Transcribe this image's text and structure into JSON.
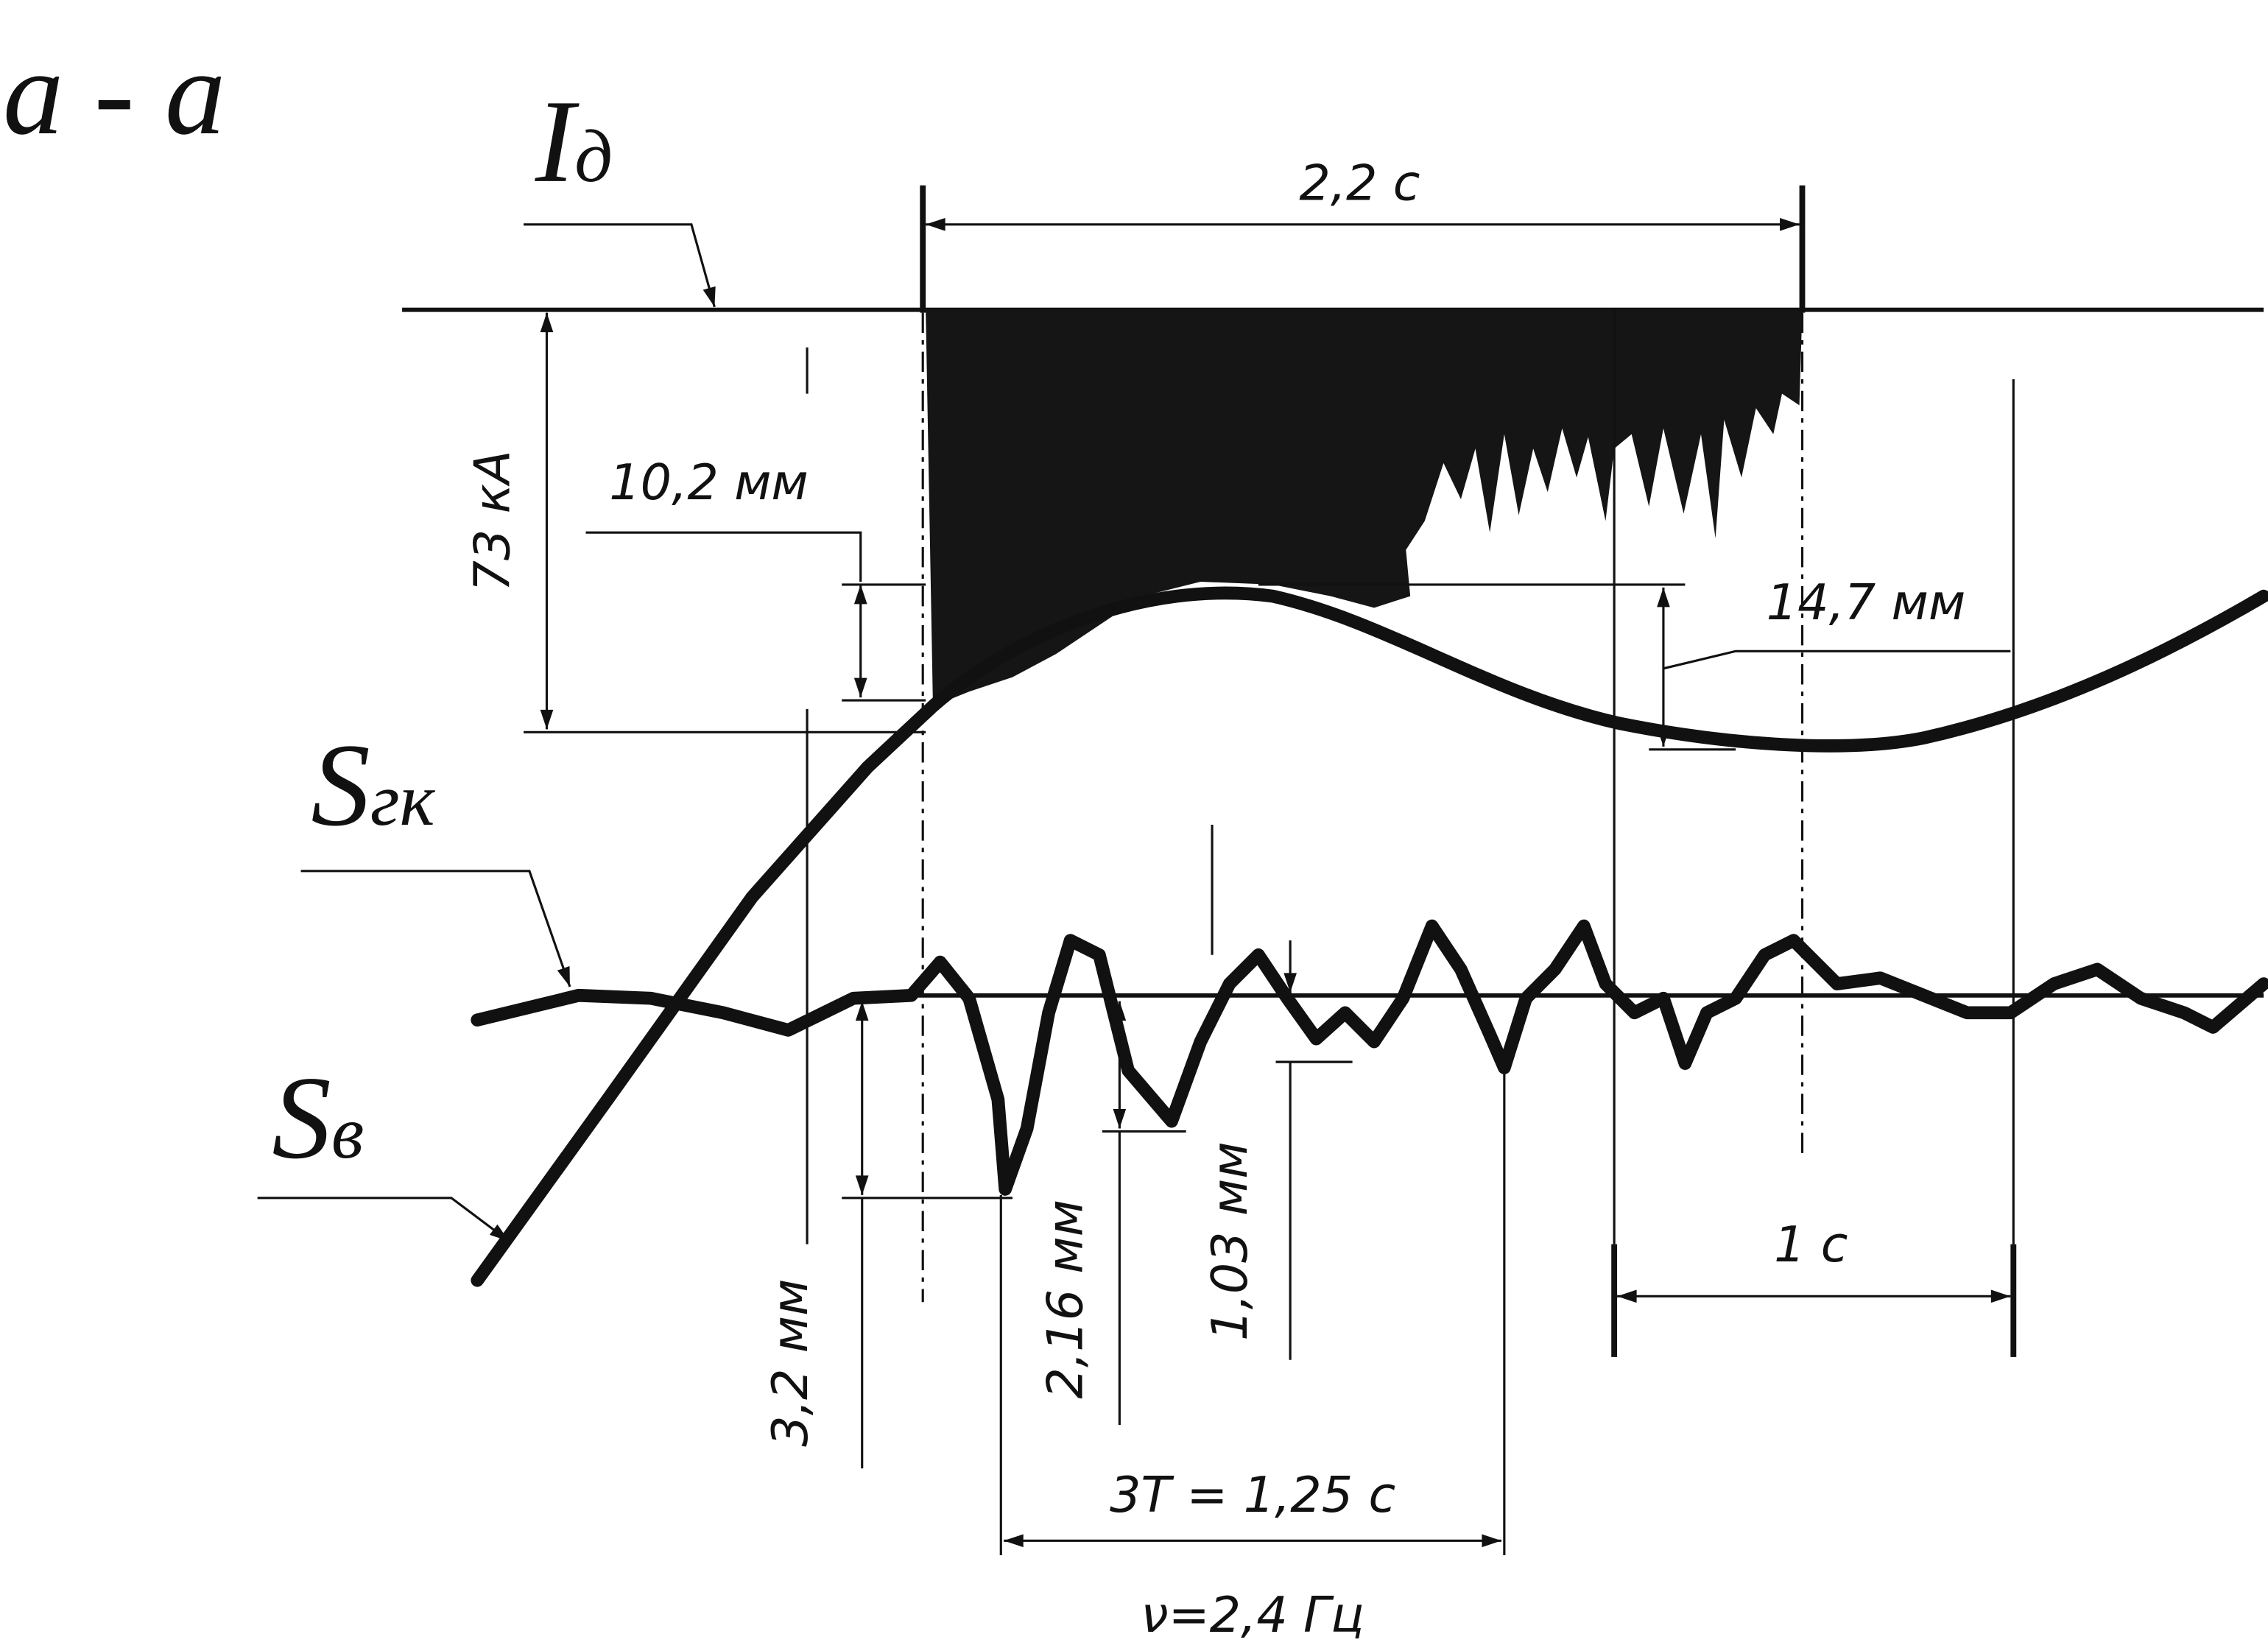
{
  "section_label": "a - a",
  "signals": {
    "current": {
      "symbol": "I",
      "subscript": "д"
    },
    "s_gk": {
      "symbol": "S",
      "subscript": "гк"
    },
    "s_v": {
      "symbol": "S",
      "subscript": "в"
    }
  },
  "dimensions": {
    "duration": "2,2 с",
    "current_amplitude": "73 кА",
    "s_gk_rise": "10,2 мм",
    "s_gk_drop": "14,7 мм",
    "time_scale": "1 с",
    "s_v_first": "3,2 мм",
    "s_v_second": "2,16 мм",
    "s_v_third": "1,03 мм",
    "period": "3T = 1,25 с",
    "frequency": "ν=2,4 Гц"
  }
}
